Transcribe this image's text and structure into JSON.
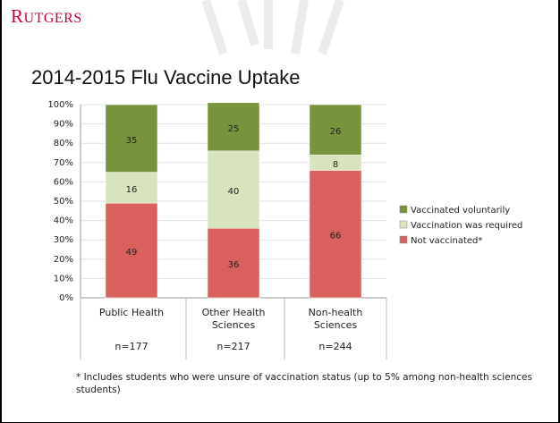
{
  "header": {
    "brand": "RUTGERS"
  },
  "chart_data": {
    "type": "stacked_bar",
    "title": "2014-2015 Flu Vaccine Uptake",
    "categories": [
      "Public Health",
      "Other Health Sciences",
      "Non-health Sciences"
    ],
    "sample_sizes": [
      "n=177",
      "n=217",
      "n=244"
    ],
    "series": [
      {
        "name": "Not vaccinated*",
        "color": "#d9605c",
        "values": [
          49,
          36,
          66
        ]
      },
      {
        "name": "Vaccination was required",
        "color": "#d7e4bd",
        "values": [
          16,
          40,
          8
        ]
      },
      {
        "name": "Vaccinated voluntarily",
        "color": "#77933c",
        "values": [
          35,
          25,
          26
        ]
      }
    ],
    "ylim": [
      0,
      100
    ],
    "yticks": [
      {
        "value": 0,
        "label": "0%"
      },
      {
        "value": 10,
        "label": "10%"
      },
      {
        "value": 20,
        "label": "20%"
      },
      {
        "value": 30,
        "label": "30%"
      },
      {
        "value": 40,
        "label": "40%"
      },
      {
        "value": 50,
        "label": "50%"
      },
      {
        "value": 60,
        "label": "60%"
      },
      {
        "value": 70,
        "label": "70%"
      },
      {
        "value": 80,
        "label": "80%"
      },
      {
        "value": 90,
        "label": "90%"
      },
      {
        "value": 100,
        "label": "100%"
      }
    ],
    "grid": true,
    "legend": "right",
    "footnote": "* Includes students who were unsure of vaccination status (up to 5% among non-health sciences students)"
  }
}
